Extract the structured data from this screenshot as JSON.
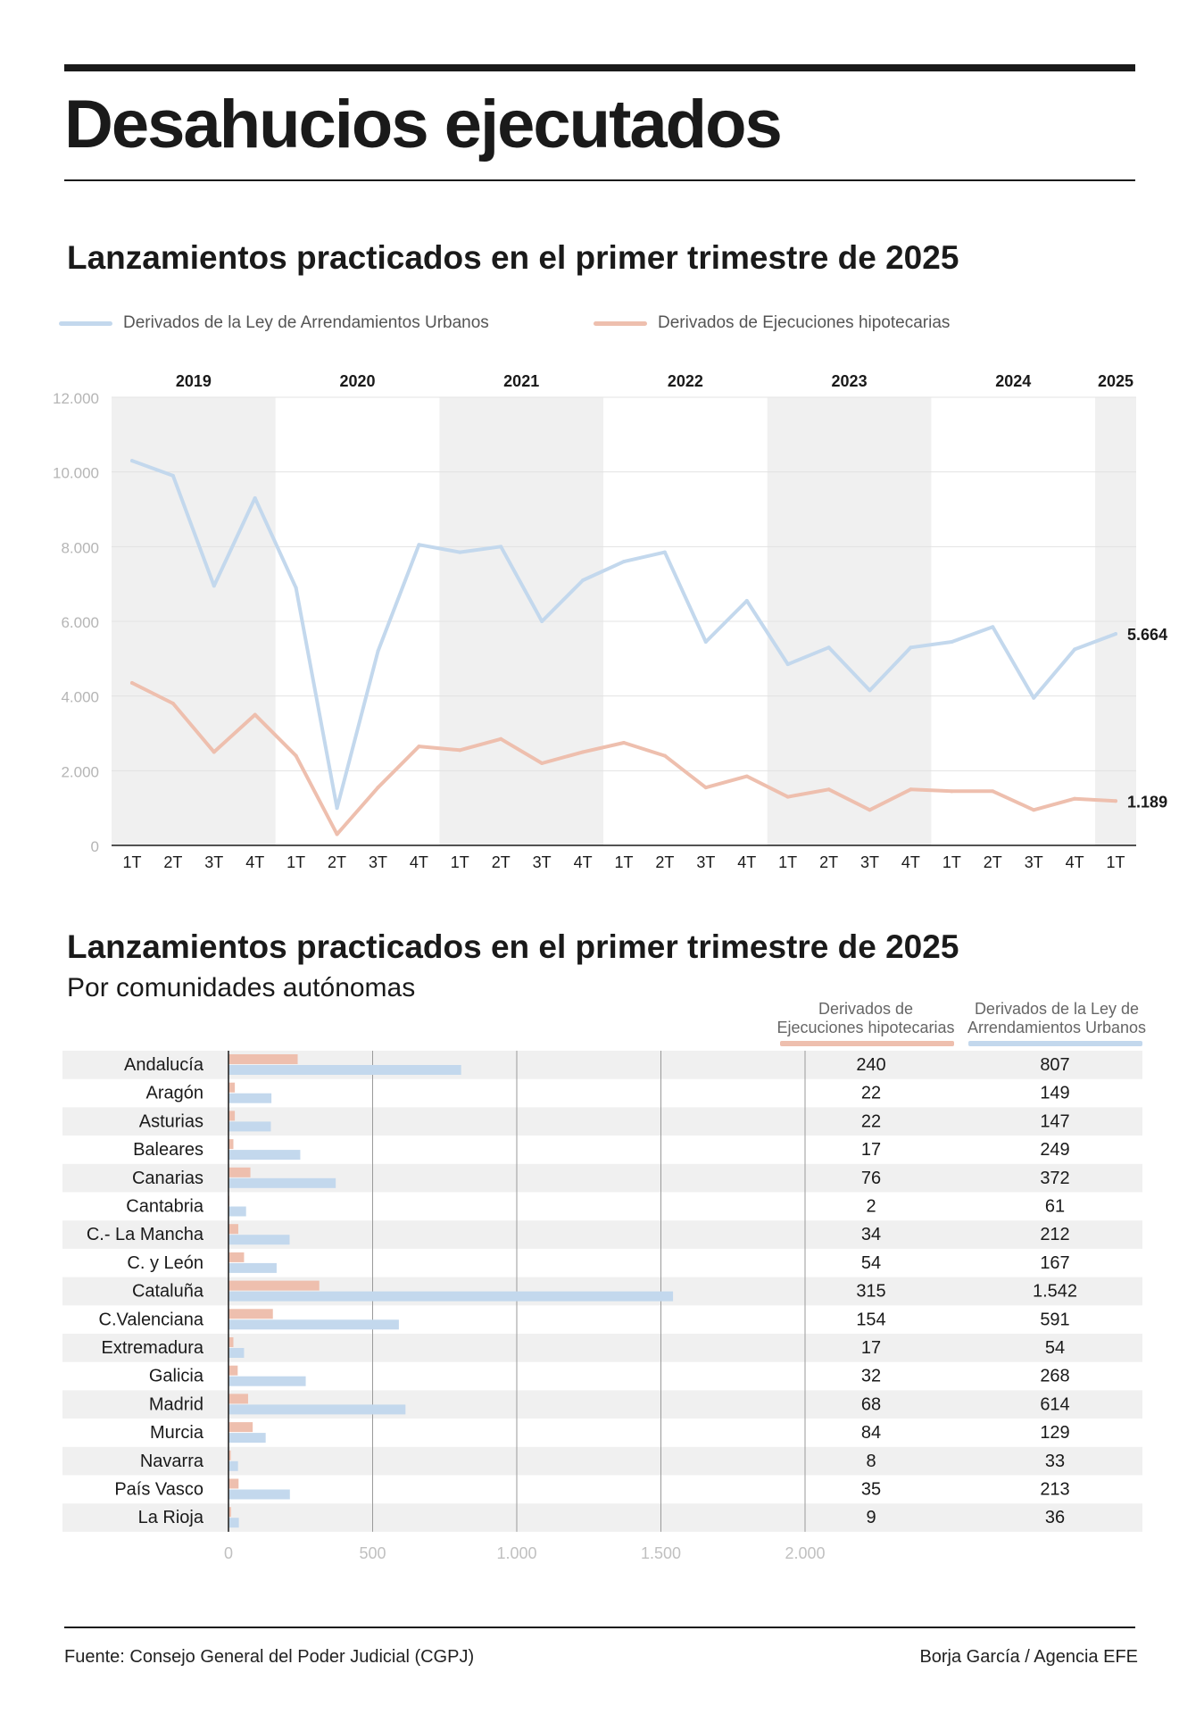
{
  "header": {
    "title": "Desahucios ejecutados"
  },
  "colors": {
    "lau": "#c3d8ed",
    "hipo": "#eebfae",
    "band": "#f0f0f0",
    "grid": "#e3e3e3",
    "axis": "#1a1a1a"
  },
  "line_section": {
    "title": "Lanzamientos practicados en el primer trimestre de 2025",
    "legend": {
      "lau": "Derivados de la Ley de Arrendamientos Urbanos",
      "hipo": "Derivados de Ejecuciones hipotecarias"
    },
    "end_labels": {
      "lau": "5.664",
      "hipo": "1.189"
    }
  },
  "bar_section": {
    "title": "Lanzamientos practicados en el primer trimestre de 2025",
    "subtitle": "Por comunidades autónomas",
    "col_hipo": [
      "Derivados de",
      "Ejecuciones hipotecarias"
    ],
    "col_lau": [
      "Derivados de la Ley de",
      "Arrendamientos Urbanos"
    ]
  },
  "footer": {
    "source": "Fuente: Consejo General del Poder Judicial (CGPJ)",
    "credit": "Borja García / Agencia EFE"
  },
  "chart_data": [
    {
      "type": "line",
      "title": "Lanzamientos practicados en el primer trimestre de 2025",
      "years": [
        {
          "label": "2019",
          "count": 4
        },
        {
          "label": "2020",
          "count": 4
        },
        {
          "label": "2021",
          "count": 4
        },
        {
          "label": "2022",
          "count": 4
        },
        {
          "label": "2023",
          "count": 4
        },
        {
          "label": "2024",
          "count": 4
        },
        {
          "label": "2025",
          "count": 1
        }
      ],
      "quarters": [
        "1T",
        "2T",
        "3T",
        "4T",
        "1T",
        "2T",
        "3T",
        "4T",
        "1T",
        "2T",
        "3T",
        "4T",
        "1T",
        "2T",
        "3T",
        "4T",
        "1T",
        "2T",
        "3T",
        "4T",
        "1T",
        "2T",
        "3T",
        "4T",
        "1T"
      ],
      "ylim": [
        0,
        12000
      ],
      "yticks": [
        0,
        2000,
        4000,
        6000,
        8000,
        10000,
        12000
      ],
      "ytick_labels": [
        "0",
        "2.000",
        "4.000",
        "6.000",
        "8.000",
        "10.000",
        "12.000"
      ],
      "series": [
        {
          "name": "Derivados de la Ley de Arrendamientos Urbanos",
          "key": "lau",
          "values": [
            10300,
            9900,
            6950,
            9300,
            6900,
            1000,
            5200,
            8050,
            7850,
            8000,
            6000,
            7100,
            7600,
            7850,
            5450,
            6550,
            4850,
            5300,
            4150,
            5300,
            5450,
            5850,
            3950,
            5250,
            5664
          ]
        },
        {
          "name": "Derivados de Ejecuciones hipotecarias",
          "key": "hipo",
          "values": [
            4350,
            3800,
            2500,
            3500,
            2400,
            300,
            1550,
            2650,
            2550,
            2850,
            2200,
            2500,
            2750,
            2400,
            1550,
            1850,
            1300,
            1500,
            950,
            1500,
            1450,
            1450,
            950,
            1250,
            1189
          ]
        }
      ]
    },
    {
      "type": "bar",
      "title": "Lanzamientos practicados en el primer trimestre de 2025",
      "subtitle": "Por comunidades autónomas",
      "xlim": [
        0,
        2000
      ],
      "xticks": [
        0,
        500,
        1000,
        1500,
        2000
      ],
      "xtick_labels": [
        "0",
        "500",
        "1.000",
        "1.500",
        "2.000"
      ],
      "categories": [
        "Andalucía",
        "Aragón",
        "Asturias",
        "Baleares",
        "Canarias",
        "Cantabria",
        "C.- La Mancha",
        "C. y León",
        "Cataluña",
        "C.Valenciana",
        "Extremadura",
        "Galicia",
        "Madrid",
        "Murcia",
        "Navarra",
        "País Vasco",
        "La Rioja"
      ],
      "series": [
        {
          "name": "Derivados de Ejecuciones hipotecarias",
          "key": "hipo",
          "values": [
            240,
            22,
            22,
            17,
            76,
            2,
            34,
            54,
            315,
            154,
            17,
            32,
            68,
            84,
            8,
            35,
            9
          ],
          "labels": [
            "240",
            "22",
            "22",
            "17",
            "76",
            "2",
            "34",
            "54",
            "315",
            "154",
            "17",
            "32",
            "68",
            "84",
            "8",
            "35",
            "9"
          ]
        },
        {
          "name": "Derivados de la Ley de Arrendamientos Urbanos",
          "key": "lau",
          "values": [
            807,
            149,
            147,
            249,
            372,
            61,
            212,
            167,
            1542,
            591,
            54,
            268,
            614,
            129,
            33,
            213,
            36
          ],
          "labels": [
            "807",
            "149",
            "147",
            "249",
            "372",
            "61",
            "212",
            "167",
            "1.542",
            "591",
            "54",
            "268",
            "614",
            "129",
            "33",
            "213",
            "36"
          ]
        }
      ]
    }
  ]
}
